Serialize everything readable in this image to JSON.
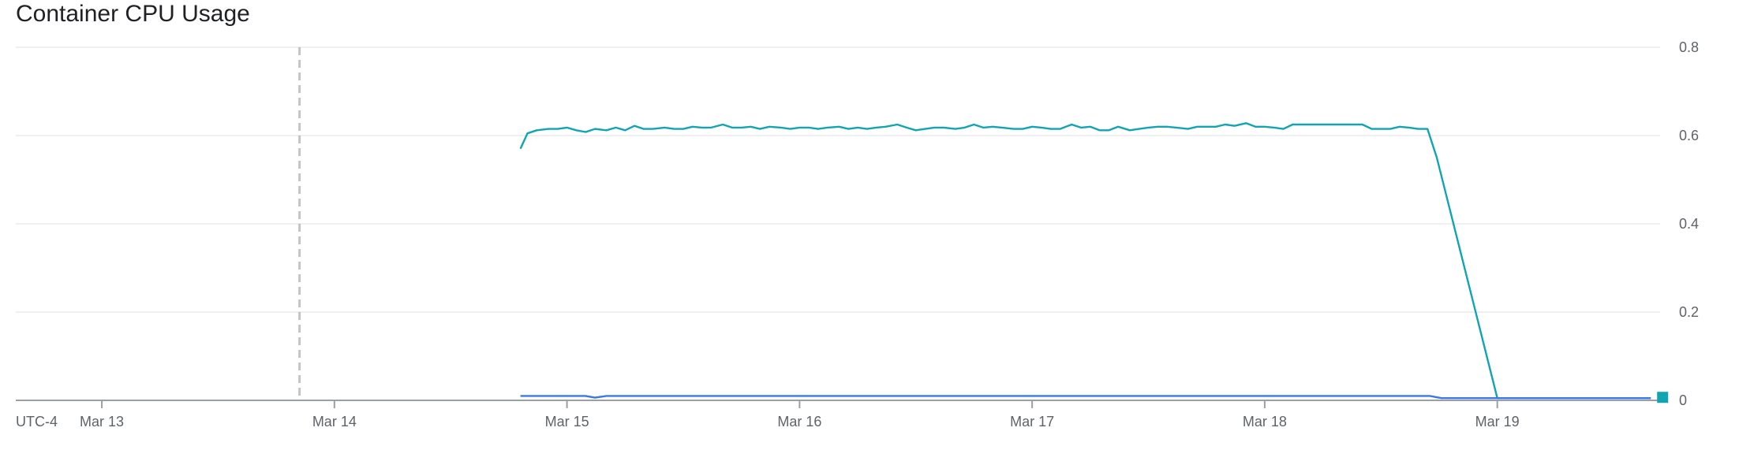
{
  "title": "Container CPU Usage",
  "timezone_label": "UTC-4",
  "colors": {
    "series_teal": "#12a4b3",
    "series_blue": "#3b78e7",
    "grid": "#e8eaed",
    "axis": "#9aa0a6",
    "marker_line": "#c4c4c4",
    "text": "#5f6368"
  },
  "chart_data": {
    "type": "line",
    "title": "Container CPU Usage",
    "xlabel": "",
    "ylabel": "",
    "y_axis_position": "right",
    "ylim": [
      0,
      0.8
    ],
    "yticks": [
      0,
      0.2,
      0.4,
      0.6,
      0.8
    ],
    "ytick_labels": [
      "0",
      "0.2",
      "0.4",
      "0.6",
      "0.8"
    ],
    "xlim": [
      12.63,
      19.7
    ],
    "xticks": [
      13,
      14,
      15,
      16,
      17,
      18,
      19
    ],
    "xtick_labels": [
      "Mar 13",
      "Mar 14",
      "Mar 15",
      "Mar 16",
      "Mar 17",
      "Mar 18",
      "Mar 19"
    ],
    "x_unit": "day of March",
    "grid": true,
    "vertical_marker_x": 13.85,
    "series": [
      {
        "color": "#12a4b3",
        "x": [
          14.8,
          14.83,
          14.87,
          14.92,
          14.96,
          15.0,
          15.04,
          15.08,
          15.12,
          15.17,
          15.21,
          15.25,
          15.29,
          15.33,
          15.37,
          15.42,
          15.46,
          15.5,
          15.54,
          15.58,
          15.62,
          15.67,
          15.71,
          15.75,
          15.79,
          15.83,
          15.87,
          15.92,
          15.96,
          16.0,
          16.04,
          16.08,
          16.12,
          16.17,
          16.21,
          16.25,
          16.29,
          16.33,
          16.37,
          16.42,
          16.46,
          16.5,
          16.54,
          16.58,
          16.62,
          16.67,
          16.71,
          16.75,
          16.79,
          16.83,
          16.87,
          16.92,
          16.96,
          17.0,
          17.04,
          17.08,
          17.12,
          17.17,
          17.21,
          17.25,
          17.29,
          17.33,
          17.37,
          17.42,
          17.46,
          17.5,
          17.54,
          17.58,
          17.62,
          17.67,
          17.71,
          17.75,
          17.79,
          17.83,
          17.87,
          17.92,
          17.96,
          18.0,
          18.04,
          18.08,
          18.12,
          18.17,
          18.21,
          18.25,
          18.29,
          18.33,
          18.37,
          18.42,
          18.46,
          18.5,
          18.54,
          18.58,
          18.62,
          18.66,
          18.7,
          18.74,
          19.0,
          19.3,
          19.66
        ],
        "y": [
          0.57,
          0.605,
          0.612,
          0.615,
          0.615,
          0.618,
          0.612,
          0.608,
          0.615,
          0.612,
          0.618,
          0.612,
          0.622,
          0.615,
          0.615,
          0.618,
          0.615,
          0.615,
          0.62,
          0.618,
          0.618,
          0.625,
          0.618,
          0.618,
          0.62,
          0.615,
          0.62,
          0.618,
          0.615,
          0.618,
          0.618,
          0.615,
          0.618,
          0.62,
          0.615,
          0.618,
          0.615,
          0.618,
          0.62,
          0.625,
          0.618,
          0.612,
          0.615,
          0.618,
          0.618,
          0.615,
          0.618,
          0.625,
          0.618,
          0.62,
          0.618,
          0.615,
          0.615,
          0.62,
          0.618,
          0.615,
          0.615,
          0.625,
          0.618,
          0.62,
          0.612,
          0.612,
          0.62,
          0.612,
          0.615,
          0.618,
          0.62,
          0.62,
          0.618,
          0.615,
          0.62,
          0.62,
          0.62,
          0.625,
          0.622,
          0.628,
          0.62,
          0.62,
          0.618,
          0.615,
          0.625,
          0.625,
          0.625,
          0.625,
          0.625,
          0.625,
          0.625,
          0.625,
          0.615,
          0.615,
          0.615,
          0.62,
          0.618,
          0.615,
          0.615,
          0.55,
          0.005,
          0.005,
          0.005
        ]
      },
      {
        "color": "#3b78e7",
        "x": [
          14.8,
          15.08,
          15.12,
          15.17,
          15.5,
          16.0,
          16.5,
          17.0,
          17.5,
          18.0,
          18.5,
          18.62,
          18.66,
          18.71,
          18.76,
          19.0,
          19.3,
          19.66
        ],
        "y": [
          0.01,
          0.01,
          0.006,
          0.01,
          0.01,
          0.01,
          0.01,
          0.01,
          0.01,
          0.01,
          0.01,
          0.01,
          0.01,
          0.01,
          0.005,
          0.005,
          0.005,
          0.005
        ]
      }
    ]
  }
}
